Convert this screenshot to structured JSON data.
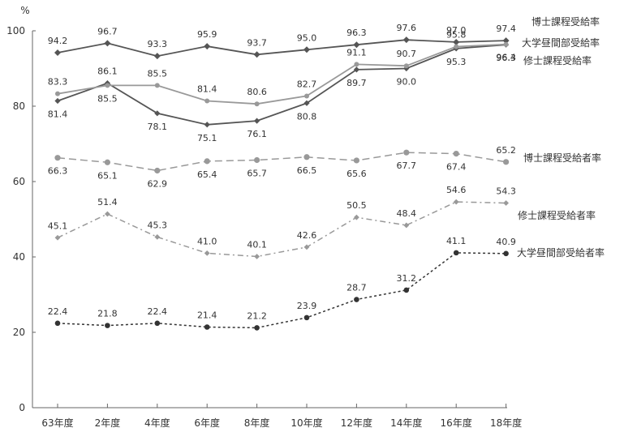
{
  "chart_data": {
    "type": "line",
    "ylabel": "%",
    "ylim": [
      0,
      100
    ],
    "yticks": [
      0,
      20,
      40,
      60,
      80,
      100
    ],
    "grid": false,
    "legend": "inline labels at right end of each line",
    "categories": [
      "63年度",
      "2年度",
      "4年度",
      "6年度",
      "8年度",
      "10年度",
      "12年度",
      "14年度",
      "16年度",
      "18年度"
    ],
    "series": [
      {
        "name": "博士課程受給率",
        "values": [
          94.2,
          96.7,
          93.3,
          95.9,
          93.7,
          95.0,
          96.3,
          97.6,
          97.0,
          97.4
        ],
        "color": "#555555"
      },
      {
        "name": "大学昼間部受給率",
        "values": [
          81.4,
          86.1,
          78.1,
          75.1,
          76.1,
          80.8,
          89.7,
          90.0,
          95.3,
          96.3
        ],
        "color": "#555555"
      },
      {
        "name": "修士課程受給率",
        "values": [
          83.3,
          85.5,
          85.5,
          81.4,
          80.6,
          82.7,
          91.1,
          90.7,
          95.8,
          96.4
        ],
        "color": "#999999"
      },
      {
        "name": "博士課程受給者率",
        "values": [
          66.3,
          65.1,
          62.9,
          65.4,
          65.7,
          66.5,
          65.6,
          67.7,
          67.4,
          65.2
        ],
        "color": "#999999"
      },
      {
        "name": "修士課程受給者率",
        "values": [
          45.1,
          51.4,
          45.3,
          41.0,
          40.1,
          42.6,
          50.5,
          48.4,
          54.6,
          54.3
        ],
        "color": "#999999"
      },
      {
        "name": "大学昼間部受給者率",
        "values": [
          22.4,
          21.8,
          22.4,
          21.4,
          21.2,
          23.9,
          28.7,
          31.2,
          41.1,
          40.9
        ],
        "color": "#333333"
      }
    ]
  }
}
